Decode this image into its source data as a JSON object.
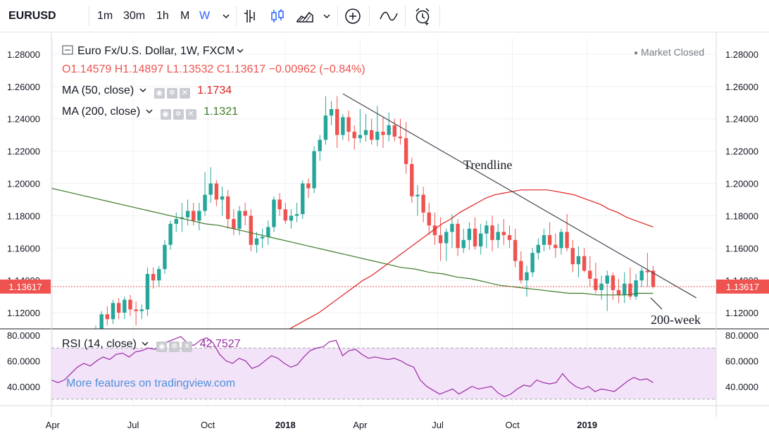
{
  "toolbar": {
    "symbol": "EURUSD",
    "intervals": [
      "1m",
      "30m",
      "1h",
      "M",
      "W"
    ],
    "active_interval": "W",
    "icons": [
      "chevron-down-icon",
      "bar-style-icon",
      "candle-style-icon",
      "area-style-icon",
      "chevron-down-icon",
      "plus-circle-icon",
      "indicators-icon",
      "alarm-icon"
    ]
  },
  "legend": {
    "title": "Euro Fx/U.S. Dollar, 1W, FXCM",
    "ohlc": {
      "o": "O1.14579",
      "h": "H1.14897",
      "l": "L1.13532",
      "c": "C1.13617",
      "change": "−0.00962 (−0.84%)"
    },
    "ma50": {
      "label": "MA (50, close)",
      "value": "1.1734"
    },
    "ma200": {
      "label": "MA (200, close)",
      "value": "1.1321"
    },
    "rsi": {
      "label": "RSI (14, close)",
      "value": "42.7527"
    },
    "market_status": "Market Closed",
    "watermark": "More features on tradingview.com"
  },
  "colors": {
    "up": "#26a69a",
    "down": "#ef5350",
    "ma50": "#e02020",
    "ma200": "#3d7a28",
    "rsi": "#9a2aa6",
    "rsi_band": "#f3e3f8",
    "trendline": "#434651"
  },
  "chart_data": {
    "type": "candlestick",
    "title": "Euro Fx/U.S. Dollar, 1W, FXCM",
    "price_axis": {
      "min": 1.11,
      "max": 1.29,
      "ticks": [
        "1.28000",
        "1.26000",
        "1.24000",
        "1.22000",
        "1.20000",
        "1.18000",
        "1.16000",
        "1.14000",
        "1.12000"
      ]
    },
    "last_price_label": "1.13617",
    "x_ticks": [
      "Apr",
      "Jul",
      "Oct",
      "2018",
      "Apr",
      "Jul",
      "Oct",
      "2019"
    ],
    "candles": [
      [
        1.105,
        1.112,
        1.103,
        1.108
      ],
      [
        1.108,
        1.121,
        1.106,
        1.119
      ],
      [
        1.119,
        1.124,
        1.112,
        1.116
      ],
      [
        1.116,
        1.128,
        1.113,
        1.126
      ],
      [
        1.126,
        1.129,
        1.116,
        1.12
      ],
      [
        1.12,
        1.13,
        1.116,
        1.128
      ],
      [
        1.128,
        1.131,
        1.118,
        1.122
      ],
      [
        1.122,
        1.127,
        1.112,
        1.121
      ],
      [
        1.121,
        1.125,
        1.116,
        1.122
      ],
      [
        1.122,
        1.148,
        1.118,
        1.144
      ],
      [
        1.144,
        1.148,
        1.135,
        1.14
      ],
      [
        1.14,
        1.149,
        1.136,
        1.147
      ],
      [
        1.147,
        1.165,
        1.144,
        1.162
      ],
      [
        1.162,
        1.177,
        1.159,
        1.175
      ],
      [
        1.175,
        1.182,
        1.17,
        1.178
      ],
      [
        1.178,
        1.188,
        1.17,
        1.179
      ],
      [
        1.179,
        1.19,
        1.174,
        1.183
      ],
      [
        1.183,
        1.188,
        1.174,
        1.177
      ],
      [
        1.177,
        1.188,
        1.171,
        1.183
      ],
      [
        1.183,
        1.207,
        1.18,
        1.193
      ],
      [
        1.193,
        1.21,
        1.188,
        1.2
      ],
      [
        1.2,
        1.202,
        1.186,
        1.19
      ],
      [
        1.19,
        1.198,
        1.18,
        1.192
      ],
      [
        1.192,
        1.196,
        1.172,
        1.178
      ],
      [
        1.178,
        1.184,
        1.168,
        1.172
      ],
      [
        1.172,
        1.186,
        1.168,
        1.183
      ],
      [
        1.183,
        1.188,
        1.174,
        1.18
      ],
      [
        1.18,
        1.184,
        1.158,
        1.162
      ],
      [
        1.162,
        1.17,
        1.157,
        1.166
      ],
      [
        1.166,
        1.172,
        1.16,
        1.167
      ],
      [
        1.167,
        1.177,
        1.162,
        1.173
      ],
      [
        1.173,
        1.192,
        1.17,
        1.19
      ],
      [
        1.19,
        1.194,
        1.18,
        1.184
      ],
      [
        1.184,
        1.188,
        1.175,
        1.177
      ],
      [
        1.177,
        1.184,
        1.172,
        1.18
      ],
      [
        1.18,
        1.188,
        1.176,
        1.181
      ],
      [
        1.181,
        1.202,
        1.178,
        1.2
      ],
      [
        1.2,
        1.203,
        1.191,
        1.197
      ],
      [
        1.197,
        1.223,
        1.194,
        1.22
      ],
      [
        1.22,
        1.23,
        1.214,
        1.227
      ],
      [
        1.227,
        1.254,
        1.224,
        1.242
      ],
      [
        1.242,
        1.251,
        1.236,
        1.246
      ],
      [
        1.246,
        1.254,
        1.222,
        1.23
      ],
      [
        1.23,
        1.243,
        1.227,
        1.241
      ],
      [
        1.241,
        1.245,
        1.226,
        1.232
      ],
      [
        1.232,
        1.236,
        1.221,
        1.228
      ],
      [
        1.228,
        1.246,
        1.225,
        1.23
      ],
      [
        1.23,
        1.243,
        1.226,
        1.233
      ],
      [
        1.233,
        1.24,
        1.224,
        1.227
      ],
      [
        1.227,
        1.248,
        1.223,
        1.232
      ],
      [
        1.232,
        1.241,
        1.222,
        1.23
      ],
      [
        1.23,
        1.244,
        1.226,
        1.236
      ],
      [
        1.236,
        1.24,
        1.226,
        1.229
      ],
      [
        1.229,
        1.24,
        1.224,
        1.228
      ],
      [
        1.228,
        1.238,
        1.206,
        1.212
      ],
      [
        1.212,
        1.216,
        1.188,
        1.192
      ],
      [
        1.192,
        1.199,
        1.18,
        1.193
      ],
      [
        1.193,
        1.198,
        1.176,
        1.182
      ],
      [
        1.182,
        1.188,
        1.168,
        1.174
      ],
      [
        1.174,
        1.182,
        1.162,
        1.168
      ],
      [
        1.168,
        1.179,
        1.152,
        1.163
      ],
      [
        1.163,
        1.172,
        1.152,
        1.17
      ],
      [
        1.17,
        1.181,
        1.16,
        1.175
      ],
      [
        1.175,
        1.178,
        1.155,
        1.16
      ],
      [
        1.16,
        1.172,
        1.157,
        1.165
      ],
      [
        1.165,
        1.176,
        1.159,
        1.172
      ],
      [
        1.172,
        1.179,
        1.159,
        1.161
      ],
      [
        1.161,
        1.175,
        1.156,
        1.169
      ],
      [
        1.169,
        1.177,
        1.16,
        1.174
      ],
      [
        1.174,
        1.18,
        1.158,
        1.165
      ],
      [
        1.165,
        1.175,
        1.16,
        1.17
      ],
      [
        1.17,
        1.178,
        1.162,
        1.168
      ],
      [
        1.168,
        1.174,
        1.16,
        1.165
      ],
      [
        1.165,
        1.172,
        1.148,
        1.152
      ],
      [
        1.152,
        1.158,
        1.138,
        1.14
      ],
      [
        1.14,
        1.149,
        1.13,
        1.145
      ],
      [
        1.145,
        1.16,
        1.142,
        1.157
      ],
      [
        1.157,
        1.166,
        1.153,
        1.162
      ],
      [
        1.162,
        1.172,
        1.158,
        1.168
      ],
      [
        1.168,
        1.176,
        1.159,
        1.162
      ],
      [
        1.162,
        1.169,
        1.154,
        1.16
      ],
      [
        1.16,
        1.172,
        1.156,
        1.17
      ],
      [
        1.17,
        1.181,
        1.158,
        1.16
      ],
      [
        1.16,
        1.165,
        1.145,
        1.15
      ],
      [
        1.15,
        1.161,
        1.142,
        1.155
      ],
      [
        1.155,
        1.16,
        1.145,
        1.146
      ],
      [
        1.146,
        1.155,
        1.136,
        1.141
      ],
      [
        1.141,
        1.151,
        1.132,
        1.134
      ],
      [
        1.134,
        1.143,
        1.128,
        1.138
      ],
      [
        1.138,
        1.146,
        1.121,
        1.143
      ],
      [
        1.143,
        1.145,
        1.128,
        1.134
      ],
      [
        1.134,
        1.141,
        1.126,
        1.131
      ],
      [
        1.131,
        1.145,
        1.126,
        1.138
      ],
      [
        1.138,
        1.148,
        1.128,
        1.13
      ],
      [
        1.13,
        1.144,
        1.128,
        1.14
      ],
      [
        1.14,
        1.148,
        1.136,
        1.146
      ],
      [
        1.146,
        1.157,
        1.136,
        1.145
      ],
      [
        1.146,
        1.149,
        1.135,
        1.136
      ]
    ],
    "ma50": [
      1.086,
      1.09,
      1.093,
      1.096,
      1.099,
      1.102,
      1.105,
      1.108,
      1.111,
      1.114,
      1.117,
      1.12,
      1.124,
      1.128,
      1.132,
      1.136,
      1.14,
      1.143,
      1.147,
      1.151,
      1.155,
      1.159,
      1.163,
      1.167,
      1.171,
      1.175,
      1.178,
      1.182,
      1.185,
      1.188,
      1.191,
      1.193,
      1.194,
      1.195,
      1.196,
      1.196,
      1.196,
      1.196,
      1.195,
      1.194,
      1.193,
      1.191,
      1.189,
      1.187,
      1.184,
      1.182,
      1.179,
      1.177,
      1.175,
      1.173
    ],
    "ma200": [
      1.197,
      1.195,
      1.193,
      1.191,
      1.189,
      1.187,
      1.185,
      1.183,
      1.181,
      1.179,
      1.177,
      1.175,
      1.174,
      1.172,
      1.17,
      1.168,
      1.166,
      1.164,
      1.162,
      1.16,
      1.158,
      1.156,
      1.154,
      1.152,
      1.15,
      1.148,
      1.147,
      1.145,
      1.144,
      1.142,
      1.141,
      1.139,
      1.137,
      1.136,
      1.135,
      1.134,
      1.133,
      1.132,
      1.132,
      1.131,
      1.131,
      1.131,
      1.132,
      1.132
    ],
    "rsi": {
      "axis": {
        "min": 25,
        "max": 85,
        "ticks": [
          "80.0000",
          "60.0000",
          "40.0000"
        ]
      },
      "band": [
        30,
        70
      ],
      "values": [
        45,
        43,
        45,
        50,
        55,
        58,
        56,
        60,
        63,
        61,
        65,
        66,
        63,
        67,
        68,
        70,
        69,
        72,
        75,
        77,
        79,
        74,
        72,
        76,
        78,
        74,
        65,
        60,
        58,
        62,
        60,
        54,
        56,
        60,
        64,
        62,
        58,
        55,
        57,
        63,
        68,
        70,
        71,
        75,
        76,
        64,
        68,
        69,
        65,
        62,
        63,
        62,
        61,
        62,
        60,
        57,
        55,
        45,
        40,
        37,
        34,
        36,
        38,
        34,
        37,
        40,
        38,
        39,
        40,
        35,
        32,
        34,
        38,
        41,
        40,
        45,
        43,
        42,
        43,
        50,
        44,
        40,
        38,
        40,
        36,
        38,
        37,
        36,
        40,
        44,
        47,
        45,
        46,
        43
      ]
    }
  },
  "annotations": {
    "trendline": "Trendline",
    "ma200_note": "200-week"
  }
}
